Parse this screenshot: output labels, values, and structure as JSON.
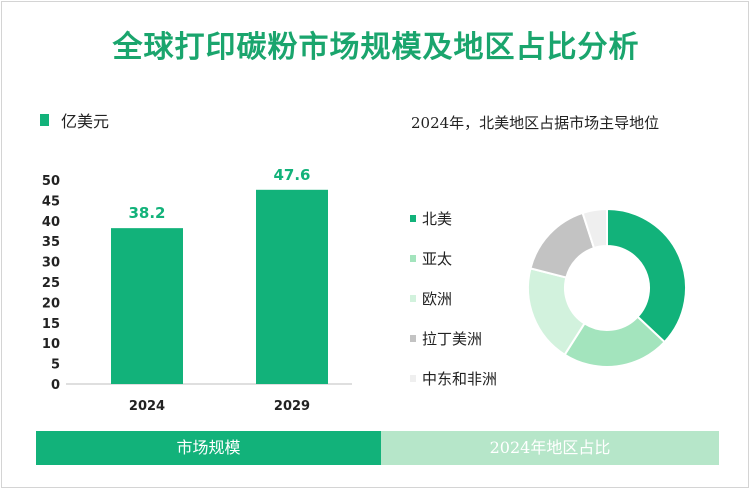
{
  "title": "全球打印碳粉市场规模及地区占比分析",
  "colors": {
    "accent": "#12b27a",
    "title": "#1aa56d"
  },
  "chart_data": [
    {
      "type": "bar",
      "legend": "亿美元",
      "categories": [
        "2024",
        "2029"
      ],
      "values": [
        38.2,
        47.6
      ],
      "data_labels": [
        "38.2",
        "47.6"
      ],
      "ylim": [
        0,
        50
      ],
      "yticks": [
        0,
        5,
        10,
        15,
        20,
        25,
        30,
        35,
        40,
        45,
        50
      ],
      "color": "#12b27a",
      "grid": false
    },
    {
      "type": "pie",
      "donut": true,
      "title": "2024年，北美地区占据市场主导地位",
      "labels": [
        "北美",
        "亚太",
        "欧洲",
        "拉丁美洲",
        "中东和非洲"
      ],
      "values": [
        37,
        22,
        20,
        16,
        5
      ],
      "colors": [
        "#12b27a",
        "#a3e4bd",
        "#d2f2dd",
        "#c3c3c3",
        "#efefef"
      ],
      "legend_position": "left"
    }
  ],
  "footer": {
    "left": "市场规模",
    "right": "2024年地区占比"
  }
}
